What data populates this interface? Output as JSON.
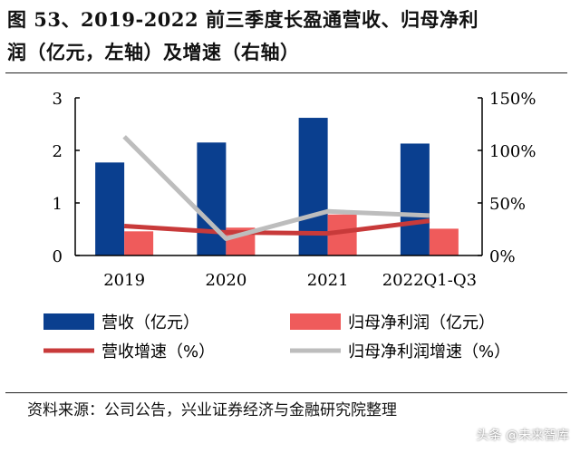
{
  "title_line1": "图 53、2019-2022 前三季度长盈通营收、归母净利",
  "title_line2": "润（亿元，左轴）及增速（右轴）",
  "source": "资料来源：公司公告，兴业证券经济与金融研究院整理",
  "watermark": "头条 @未来智库",
  "chart_data": {
    "type": "bar+line",
    "categories": [
      "2019",
      "2020",
      "2021",
      "2022Q1-Q3"
    ],
    "left_axis": {
      "ylim": [
        0,
        3
      ],
      "ticks": [
        "0",
        "1",
        "2",
        "3"
      ]
    },
    "right_axis": {
      "ylim": [
        0,
        150
      ],
      "ticks": [
        "0%",
        "50%",
        "100%",
        "150%"
      ]
    },
    "legend_placement": "bottom",
    "series": [
      {
        "name": "营收（亿元）",
        "type": "bar",
        "axis": "left",
        "color": "#0a3f8f",
        "values": [
          1.77,
          2.15,
          2.62,
          2.13
        ]
      },
      {
        "name": "归母净利润（亿元）",
        "type": "bar",
        "axis": "left",
        "color": "#ef5b5b",
        "values": [
          0.46,
          0.53,
          0.78,
          0.51
        ]
      },
      {
        "name": "营收增速（%）",
        "type": "line",
        "axis": "right",
        "color": "#c83a3a",
        "values": [
          28,
          22,
          21,
          33
        ]
      },
      {
        "name": "归母净利润增速（%）",
        "type": "line",
        "axis": "right",
        "color": "#bdbdbd",
        "values": [
          113,
          16,
          42,
          38
        ]
      }
    ]
  }
}
